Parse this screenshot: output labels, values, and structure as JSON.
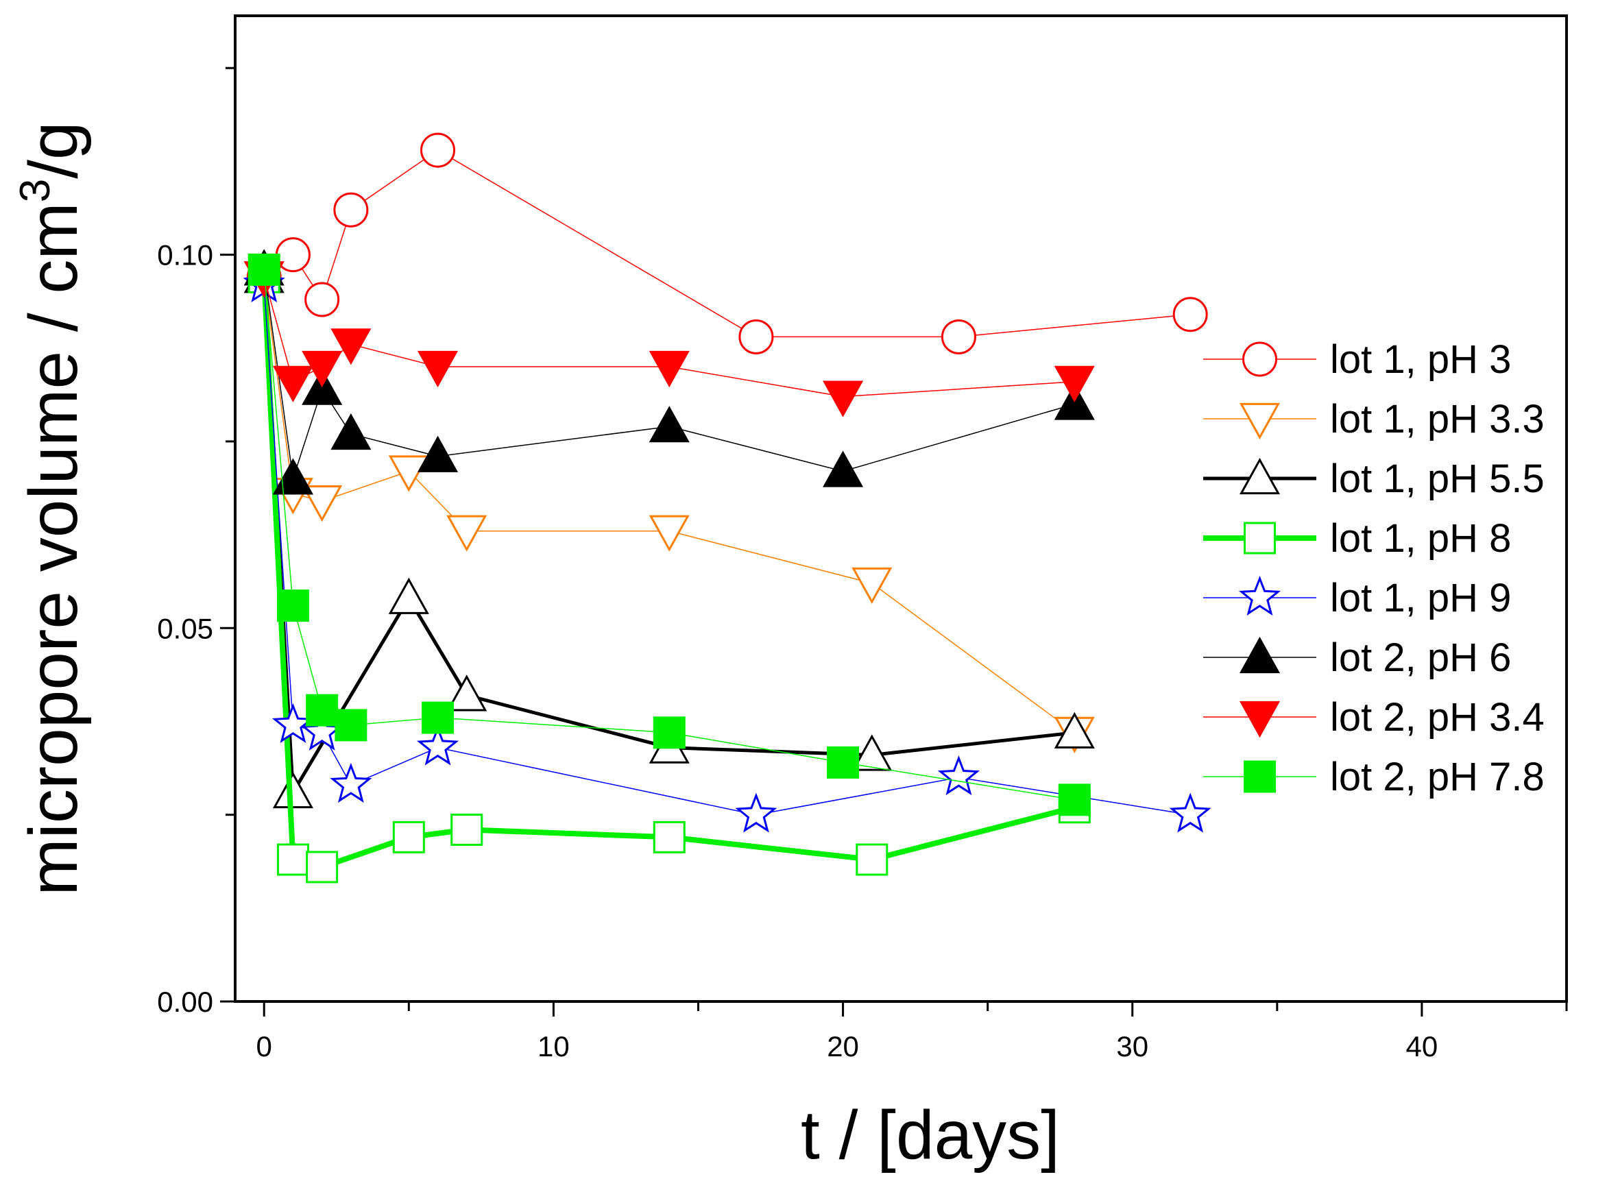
{
  "chart_data": {
    "type": "line",
    "title": "",
    "xlabel": "t / [days]",
    "ylabel_text": "micropore volume / cm",
    "ylabel_superscript": "3",
    "ylabel_suffix": "/g",
    "xlim": [
      -1,
      45
    ],
    "ylim": [
      0,
      0.132
    ],
    "xticks": [
      0,
      10,
      20,
      30,
      40
    ],
    "xtick_labels": [
      "0",
      "10",
      "20",
      "30",
      "40"
    ],
    "yticks": [
      0,
      0.05,
      0.1
    ],
    "ytick_labels": [
      "0.00",
      "0.05",
      "0.10"
    ],
    "grid": false,
    "legend_position": "right",
    "series": [
      {
        "name": "lot 1, pH 3",
        "marker": "circle",
        "fill": "none",
        "color": "#ff0000",
        "width": 1.5,
        "x": [
          0,
          1,
          2,
          3,
          6,
          17,
          24,
          32
        ],
        "y": [
          0.097,
          0.1,
          0.094,
          0.106,
          0.114,
          0.089,
          0.089,
          0.092
        ]
      },
      {
        "name": "lot 1, pH 3.3",
        "marker": "triangle-down",
        "fill": "none",
        "color": "#ff8000",
        "width": 1.5,
        "x": [
          0,
          1,
          2,
          5,
          7,
          14,
          21,
          28
        ],
        "y": [
          0.097,
          0.068,
          0.067,
          0.071,
          0.063,
          0.063,
          0.056,
          0.036
        ]
      },
      {
        "name": "lot 1, pH 5.5",
        "marker": "triangle-up",
        "fill": "none",
        "color": "#000000",
        "width": 5,
        "x": [
          0,
          1,
          5,
          7,
          14,
          21,
          28
        ],
        "y": [
          0.097,
          0.028,
          0.054,
          0.041,
          0.034,
          0.033,
          0.036
        ]
      },
      {
        "name": "lot 1, pH 8",
        "marker": "square",
        "fill": "none",
        "color": "#00ee00",
        "width": 8,
        "x": [
          0,
          1,
          2,
          5,
          7,
          14,
          21,
          28
        ],
        "y": [
          0.097,
          0.019,
          0.018,
          0.022,
          0.023,
          0.022,
          0.019,
          0.026
        ]
      },
      {
        "name": "lot 1, pH 9",
        "marker": "star",
        "fill": "none",
        "color": "#0000ff",
        "width": 1.5,
        "x": [
          0,
          1,
          2,
          3,
          6,
          17,
          24,
          32
        ],
        "y": [
          0.096,
          0.037,
          0.036,
          0.029,
          0.034,
          0.025,
          0.03,
          0.025
        ]
      },
      {
        "name": "lot 2, pH 6",
        "marker": "triangle-up",
        "fill": "solid",
        "color": "#000000",
        "width": 1.5,
        "x": [
          0,
          1,
          2,
          3,
          6,
          14,
          20,
          28
        ],
        "y": [
          0.098,
          0.07,
          0.082,
          0.076,
          0.073,
          0.077,
          0.071,
          0.08
        ]
      },
      {
        "name": "lot 2, pH 3.4",
        "marker": "triangle-down",
        "fill": "solid",
        "color": "#ff0000",
        "width": 1.5,
        "x": [
          0,
          1,
          2,
          3,
          6,
          14,
          20,
          28
        ],
        "y": [
          0.097,
          0.083,
          0.085,
          0.088,
          0.085,
          0.085,
          0.081,
          0.083
        ]
      },
      {
        "name": "lot 2, pH 7.8",
        "marker": "square",
        "fill": "solid",
        "color": "#00ee00",
        "width": 1.5,
        "x": [
          0,
          1,
          2,
          3,
          6,
          14,
          20,
          28
        ],
        "y": [
          0.098,
          0.053,
          0.039,
          0.037,
          0.038,
          0.036,
          0.032,
          0.027
        ]
      }
    ]
  }
}
